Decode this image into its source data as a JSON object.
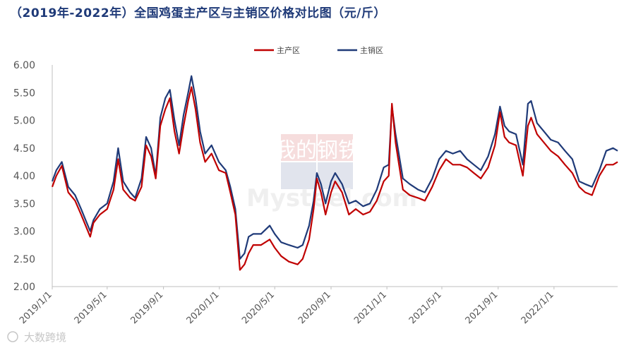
{
  "chart_data": {
    "type": "line",
    "title": "（2019年-2022年）全国鸡蛋主产区与主销区价格对比图（元/斤）",
    "xlabel": "",
    "ylabel": "",
    "ylim": [
      2.0,
      6.0
    ],
    "y_ticks": [
      "2.00",
      "2.50",
      "3.00",
      "3.50",
      "4.00",
      "4.50",
      "5.00",
      "5.50",
      "6.00"
    ],
    "x_ticks": [
      "2019/1/1",
      "2019/5/1",
      "2019/9/1",
      "2020/1/1",
      "2020/5/1",
      "2020/9/1",
      "2021/1/1",
      "2021/5/1",
      "2021/9/1",
      "2022/1/1"
    ],
    "x_range": [
      "2019/1/1",
      "2022/5/20"
    ],
    "grid": false,
    "legend_position": "top-right",
    "series": [
      {
        "name": "主产区",
        "color": "#c00000",
        "points": [
          [
            "2019/1/1",
            3.8
          ],
          [
            "2019/1/10",
            4.0
          ],
          [
            "2019/1/22",
            4.18
          ],
          [
            "2019/2/5",
            3.7
          ],
          [
            "2019/2/20",
            3.55
          ],
          [
            "2019/3/5",
            3.3
          ],
          [
            "2019/3/15",
            3.1
          ],
          [
            "2019/3/25",
            2.9
          ],
          [
            "2019/4/1",
            3.15
          ],
          [
            "2019/4/15",
            3.3
          ],
          [
            "2019/5/1",
            3.4
          ],
          [
            "2019/5/15",
            3.75
          ],
          [
            "2019/5/25",
            4.3
          ],
          [
            "2019/6/5",
            3.75
          ],
          [
            "2019/6/20",
            3.6
          ],
          [
            "2019/7/1",
            3.55
          ],
          [
            "2019/7/15",
            3.8
          ],
          [
            "2019/7/25",
            4.55
          ],
          [
            "2019/8/5",
            4.35
          ],
          [
            "2019/8/15",
            3.95
          ],
          [
            "2019/8/25",
            4.9
          ],
          [
            "2019/9/5",
            5.2
          ],
          [
            "2019/9/15",
            5.4
          ],
          [
            "2019/9/25",
            4.8
          ],
          [
            "2019/10/5",
            4.4
          ],
          [
            "2019/10/15",
            4.9
          ],
          [
            "2019/10/25",
            5.35
          ],
          [
            "2019/11/1",
            5.6
          ],
          [
            "2019/11/10",
            5.2
          ],
          [
            "2019/11/20",
            4.6
          ],
          [
            "2019/12/1",
            4.25
          ],
          [
            "2019/12/15",
            4.4
          ],
          [
            "2019/12/31",
            4.1
          ],
          [
            "2020/1/15",
            4.05
          ],
          [
            "2020/1/25",
            3.7
          ],
          [
            "2020/2/5",
            3.3
          ],
          [
            "2020/2/15",
            2.3
          ],
          [
            "2020/2/25",
            2.4
          ],
          [
            "2020/3/5",
            2.6
          ],
          [
            "2020/3/15",
            2.75
          ],
          [
            "2020/4/1",
            2.75
          ],
          [
            "2020/4/20",
            2.85
          ],
          [
            "2020/5/1",
            2.7
          ],
          [
            "2020/5/15",
            2.55
          ],
          [
            "2020/6/1",
            2.45
          ],
          [
            "2020/6/20",
            2.4
          ],
          [
            "2020/7/1",
            2.5
          ],
          [
            "2020/7/15",
            2.85
          ],
          [
            "2020/7/25",
            3.4
          ],
          [
            "2020/8/1",
            3.95
          ],
          [
            "2020/8/10",
            3.7
          ],
          [
            "2020/8/20",
            3.3
          ],
          [
            "2020/9/1",
            3.7
          ],
          [
            "2020/9/10",
            3.9
          ],
          [
            "2020/9/25",
            3.7
          ],
          [
            "2020/10/10",
            3.3
          ],
          [
            "2020/10/25",
            3.4
          ],
          [
            "2020/11/10",
            3.3
          ],
          [
            "2020/11/25",
            3.35
          ],
          [
            "2020/12/10",
            3.55
          ],
          [
            "2020/12/25",
            3.9
          ],
          [
            "2021/1/5",
            4.0
          ],
          [
            "2021/1/12",
            5.3
          ],
          [
            "2021/1/20",
            4.6
          ],
          [
            "2021/2/5",
            3.75
          ],
          [
            "2021/2/20",
            3.65
          ],
          [
            "2021/3/10",
            3.6
          ],
          [
            "2021/3/25",
            3.55
          ],
          [
            "2021/4/10",
            3.8
          ],
          [
            "2021/4/25",
            4.1
          ],
          [
            "2021/5/10",
            4.3
          ],
          [
            "2021/5/25",
            4.2
          ],
          [
            "2021/6/10",
            4.2
          ],
          [
            "2021/6/25",
            4.15
          ],
          [
            "2021/7/10",
            4.05
          ],
          [
            "2021/7/25",
            3.95
          ],
          [
            "2021/8/10",
            4.15
          ],
          [
            "2021/8/25",
            4.55
          ],
          [
            "2021/9/5",
            5.15
          ],
          [
            "2021/9/15",
            4.7
          ],
          [
            "2021/9/25",
            4.6
          ],
          [
            "2021/10/10",
            4.55
          ],
          [
            "2021/10/25",
            4.0
          ],
          [
            "2021/11/5",
            4.9
          ],
          [
            "2021/11/12",
            5.05
          ],
          [
            "2021/11/25",
            4.75
          ],
          [
            "2021/12/10",
            4.6
          ],
          [
            "2021/12/25",
            4.45
          ],
          [
            "2022/1/10",
            4.35
          ],
          [
            "2022/1/25",
            4.2
          ],
          [
            "2022/2/10",
            4.05
          ],
          [
            "2022/2/25",
            3.8
          ],
          [
            "2022/3/10",
            3.7
          ],
          [
            "2022/3/25",
            3.65
          ],
          [
            "2022/4/10",
            4.0
          ],
          [
            "2022/4/25",
            4.2
          ],
          [
            "2022/5/10",
            4.2
          ],
          [
            "2022/5/20",
            4.25
          ]
        ]
      },
      {
        "name": "主销区",
        "color": "#1f3a78",
        "points": [
          [
            "2019/1/1",
            3.9
          ],
          [
            "2019/1/10",
            4.1
          ],
          [
            "2019/1/22",
            4.25
          ],
          [
            "2019/2/5",
            3.8
          ],
          [
            "2019/2/20",
            3.65
          ],
          [
            "2019/3/5",
            3.4
          ],
          [
            "2019/3/15",
            3.2
          ],
          [
            "2019/3/25",
            3.0
          ],
          [
            "2019/4/1",
            3.2
          ],
          [
            "2019/4/15",
            3.4
          ],
          [
            "2019/5/1",
            3.5
          ],
          [
            "2019/5/15",
            3.9
          ],
          [
            "2019/5/25",
            4.5
          ],
          [
            "2019/6/5",
            3.9
          ],
          [
            "2019/6/20",
            3.7
          ],
          [
            "2019/7/1",
            3.6
          ],
          [
            "2019/7/15",
            3.95
          ],
          [
            "2019/7/25",
            4.7
          ],
          [
            "2019/8/5",
            4.5
          ],
          [
            "2019/8/15",
            4.0
          ],
          [
            "2019/8/25",
            5.05
          ],
          [
            "2019/9/5",
            5.4
          ],
          [
            "2019/9/15",
            5.55
          ],
          [
            "2019/9/25",
            5.0
          ],
          [
            "2019/10/5",
            4.55
          ],
          [
            "2019/10/15",
            5.1
          ],
          [
            "2019/10/25",
            5.5
          ],
          [
            "2019/11/1",
            5.8
          ],
          [
            "2019/11/10",
            5.4
          ],
          [
            "2019/11/20",
            4.8
          ],
          [
            "2019/12/1",
            4.4
          ],
          [
            "2019/12/15",
            4.55
          ],
          [
            "2019/12/31",
            4.25
          ],
          [
            "2020/1/15",
            4.1
          ],
          [
            "2020/1/25",
            3.8
          ],
          [
            "2020/2/5",
            3.4
          ],
          [
            "2020/2/15",
            2.5
          ],
          [
            "2020/2/25",
            2.6
          ],
          [
            "2020/3/5",
            2.9
          ],
          [
            "2020/3/15",
            2.95
          ],
          [
            "2020/4/1",
            2.95
          ],
          [
            "2020/4/20",
            3.1
          ],
          [
            "2020/5/1",
            2.95
          ],
          [
            "2020/5/15",
            2.8
          ],
          [
            "2020/6/1",
            2.75
          ],
          [
            "2020/6/20",
            2.7
          ],
          [
            "2020/7/1",
            2.75
          ],
          [
            "2020/7/15",
            3.1
          ],
          [
            "2020/7/25",
            3.55
          ],
          [
            "2020/8/1",
            4.05
          ],
          [
            "2020/8/10",
            3.85
          ],
          [
            "2020/8/20",
            3.5
          ],
          [
            "2020/9/1",
            3.9
          ],
          [
            "2020/9/10",
            4.05
          ],
          [
            "2020/9/25",
            3.85
          ],
          [
            "2020/10/10",
            3.5
          ],
          [
            "2020/10/25",
            3.55
          ],
          [
            "2020/11/10",
            3.45
          ],
          [
            "2020/11/25",
            3.5
          ],
          [
            "2020/12/10",
            3.75
          ],
          [
            "2020/12/25",
            4.15
          ],
          [
            "2021/1/5",
            4.2
          ],
          [
            "2021/1/12",
            5.25
          ],
          [
            "2021/1/20",
            4.75
          ],
          [
            "2021/2/5",
            3.95
          ],
          [
            "2021/2/20",
            3.85
          ],
          [
            "2021/3/10",
            3.75
          ],
          [
            "2021/3/25",
            3.7
          ],
          [
            "2021/4/10",
            3.95
          ],
          [
            "2021/4/25",
            4.3
          ],
          [
            "2021/5/10",
            4.45
          ],
          [
            "2021/5/25",
            4.4
          ],
          [
            "2021/6/10",
            4.45
          ],
          [
            "2021/6/25",
            4.3
          ],
          [
            "2021/7/10",
            4.2
          ],
          [
            "2021/7/25",
            4.1
          ],
          [
            "2021/8/10",
            4.35
          ],
          [
            "2021/8/25",
            4.75
          ],
          [
            "2021/9/5",
            5.25
          ],
          [
            "2021/9/15",
            4.9
          ],
          [
            "2021/9/25",
            4.8
          ],
          [
            "2021/10/10",
            4.75
          ],
          [
            "2021/10/25",
            4.2
          ],
          [
            "2021/11/5",
            5.3
          ],
          [
            "2021/11/12",
            5.35
          ],
          [
            "2021/11/25",
            4.95
          ],
          [
            "2021/12/10",
            4.8
          ],
          [
            "2021/12/25",
            4.65
          ],
          [
            "2022/1/10",
            4.6
          ],
          [
            "2022/1/25",
            4.45
          ],
          [
            "2022/2/10",
            4.3
          ],
          [
            "2022/2/25",
            3.9
          ],
          [
            "2022/3/10",
            3.85
          ],
          [
            "2022/3/25",
            3.8
          ],
          [
            "2022/4/10",
            4.1
          ],
          [
            "2022/4/25",
            4.45
          ],
          [
            "2022/5/10",
            4.5
          ],
          [
            "2022/5/20",
            4.45
          ]
        ]
      }
    ]
  },
  "watermark": {
    "brand_cn": "我的钢铁",
    "brand_en": "Mysteel.com",
    "footer_text": "大数跨境"
  }
}
